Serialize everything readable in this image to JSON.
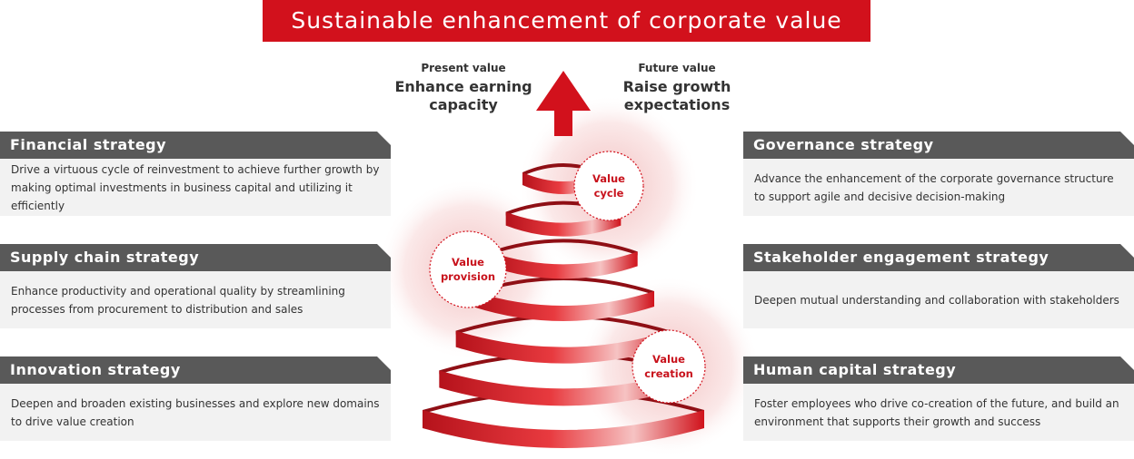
{
  "title": "Sustainable enhancement of corporate value",
  "present": {
    "label": "Present value",
    "text": "Enhance earning capacity"
  },
  "future": {
    "label": "Future value",
    "text": "Raise growth expectations"
  },
  "circles": [
    "Value cycle",
    "Value provision",
    "Value creation"
  ],
  "left": [
    {
      "title": "Financial strategy",
      "text": "Drive a virtuous cycle of reinvestment to achieve further growth by making optimal investments in business capital and utilizing it efficiently"
    },
    {
      "title": "Supply chain strategy",
      "text": "Enhance productivity and operational quality by streamlining processes from procurement to distribution and sales"
    },
    {
      "title": "Innovation strategy",
      "text": "Deepen and broaden existing businesses and explore new domains to drive value creation"
    }
  ],
  "right": [
    {
      "title": "Governance strategy",
      "text": "Advance the enhancement of the corporate governance structure to support agile and decisive decision-making"
    },
    {
      "title": "Stakeholder engagement strategy",
      "text": "Deepen mutual understanding and collaboration with stakeholders"
    },
    {
      "title": "Human capital strategy",
      "text": "Foster employees who drive co-creation of the future, and build an environment that supports their growth and success"
    }
  ]
}
